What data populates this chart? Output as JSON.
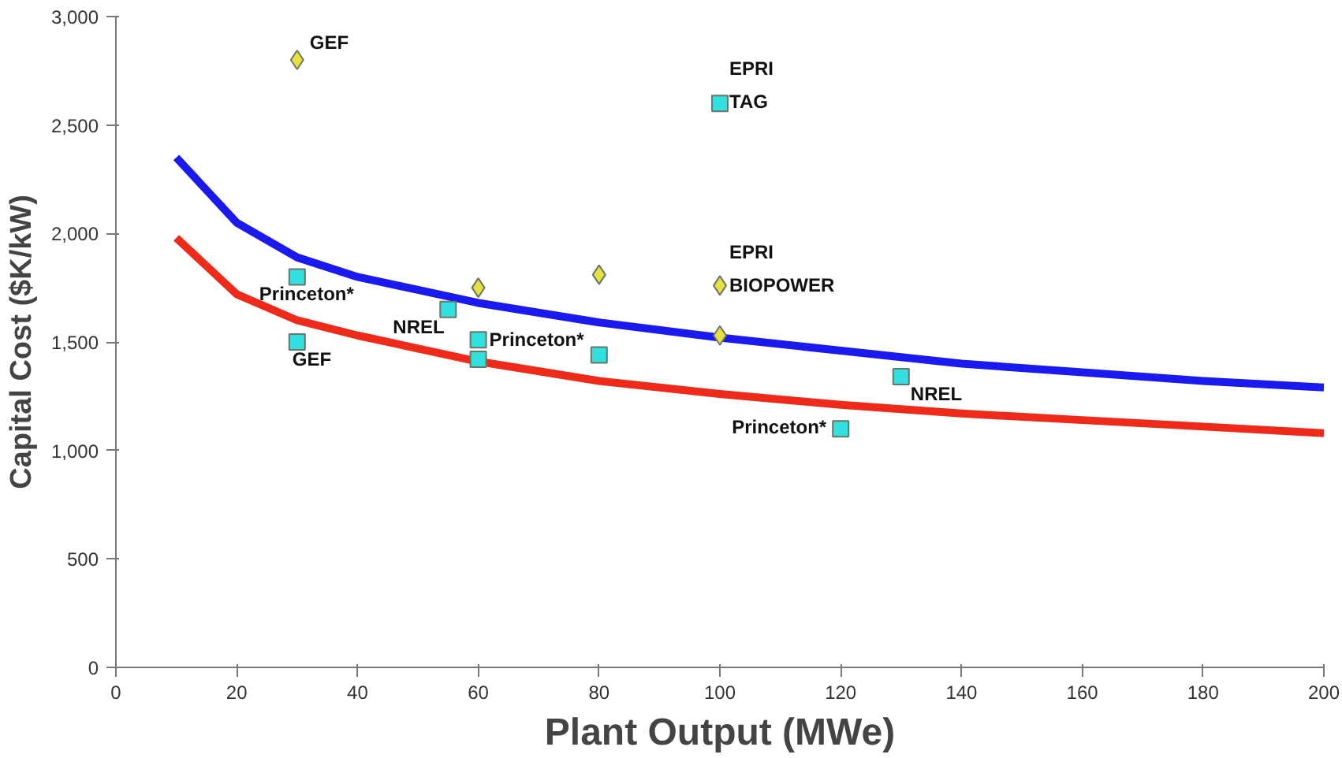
{
  "chart_data": {
    "type": "scatter",
    "xlabel": "Plant Output (MWe)",
    "ylabel": "Capital Cost ($K/kW)",
    "xlim": [
      0,
      200
    ],
    "ylim": [
      0,
      3000
    ],
    "xticks": [
      0,
      20,
      40,
      60,
      80,
      100,
      120,
      140,
      160,
      180,
      200
    ],
    "yticks": [
      {
        "value": 0,
        "label": "0"
      },
      {
        "value": 500,
        "label": "500"
      },
      {
        "value": 1000,
        "label": "1,000"
      },
      {
        "value": 1500,
        "label": "1,500"
      },
      {
        "value": 2000,
        "label": "2,000"
      },
      {
        "value": 2500,
        "label": "2,500"
      },
      {
        "value": 3000,
        "label": "3,000"
      }
    ],
    "grid": false,
    "series": [
      {
        "type": "line",
        "color": "#1a1aee",
        "x": [
          10,
          20,
          30,
          40,
          60,
          80,
          100,
          120,
          140,
          160,
          180,
          200
        ],
        "values": [
          2350,
          2050,
          1890,
          1800,
          1680,
          1590,
          1520,
          1460,
          1400,
          1360,
          1320,
          1290
        ]
      },
      {
        "type": "line",
        "color": "#ee2a1a",
        "x": [
          10,
          20,
          30,
          40,
          60,
          80,
          100,
          120,
          140,
          160,
          180,
          200
        ],
        "values": [
          1980,
          1720,
          1600,
          1530,
          1410,
          1320,
          1260,
          1210,
          1170,
          1140,
          1110,
          1080
        ]
      },
      {
        "marker": "square",
        "color": "#33e0e0",
        "x": [
          30,
          30,
          55,
          60,
          60,
          80,
          100,
          120,
          130
        ],
        "values": [
          1800,
          1500,
          1650,
          1510,
          1420,
          1440,
          2600,
          1100,
          1340
        ]
      },
      {
        "marker": "diamond",
        "color": "#e8e040",
        "x": [
          30,
          60,
          80,
          100,
          100
        ],
        "values": [
          2800,
          1750,
          1810,
          1760,
          1530
        ]
      }
    ],
    "annotations": [
      {
        "text": "GEF",
        "x": 30,
        "y": 2800
      },
      {
        "text": "EPRI\nTAG",
        "x": 100,
        "y": 2600
      },
      {
        "text": "Princeton*",
        "x": 30,
        "y": 1800
      },
      {
        "text": "NREL",
        "x": 55,
        "y": 1650
      },
      {
        "text": "GEF",
        "x": 30,
        "y": 1500
      },
      {
        "text": "Princeton*",
        "x": 60,
        "y": 1510
      },
      {
        "text": "EPRI\nBIOPOWER",
        "x": 100,
        "y": 1760
      },
      {
        "text": "Princeton*",
        "x": 120,
        "y": 1100
      },
      {
        "text": "NREL",
        "x": 130,
        "y": 1340
      }
    ]
  }
}
